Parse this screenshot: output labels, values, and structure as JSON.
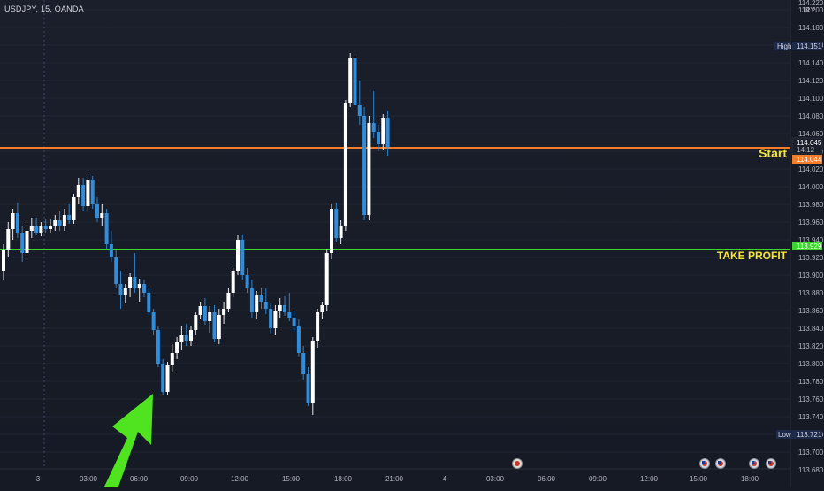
{
  "header": {
    "symbol": "USDJPY, 15, OANDA"
  },
  "price_axis": {
    "currency": "JPY",
    "top_partial": "114.220",
    "ticks": [
      "114.200",
      "114.180",
      "114.160",
      "114.140",
      "114.120",
      "114.100",
      "114.080",
      "114.060",
      "114.040",
      "114.020",
      "114.000",
      "113.980",
      "113.960",
      "113.940",
      "113.920",
      "113.900",
      "113.880",
      "113.860",
      "113.840",
      "113.820",
      "113.800",
      "113.780",
      "113.760",
      "113.740",
      "113.720",
      "113.700",
      "113.680"
    ],
    "high_label": "High",
    "high_value": "114.151",
    "current_price": "114.045",
    "countdown": "14:12",
    "start_price_tag": "114.044",
    "take_profit_price_tag": "113.929",
    "low_label": "Low",
    "low_value": "113.721"
  },
  "time_axis": {
    "labels": [
      "3",
      "03:00",
      "06:00",
      "09:00",
      "12:00",
      "15:00",
      "18:00",
      "21:00",
      "4",
      "03:00",
      "06:00",
      "09:00",
      "12:00",
      "15:00",
      "18:00"
    ]
  },
  "levels": {
    "start": {
      "label": "Start",
      "price": 114.044,
      "color": "#f57c2a"
    },
    "take_profit": {
      "label": "TAKE PROFIT",
      "price": 113.929,
      "color": "#3bd62c"
    }
  },
  "colors": {
    "up": "#ffffff",
    "down": "#2f8ddc",
    "arrow": "#4fe41f",
    "label": "#f5e73a",
    "bg": "#161a25"
  },
  "annotations": [
    {
      "type": "arrow",
      "direction": "up-right",
      "color": "#4fe41f"
    }
  ],
  "event_icons": [
    "event-icon",
    "us-flag-icon",
    "us-flag-icon",
    "us-flag-icon",
    "us-flag-icon"
  ],
  "chart_data": {
    "type": "candlestick",
    "ylim": [
      113.68,
      114.22
    ],
    "candles": [
      {
        "o": 113.905,
        "h": 113.935,
        "l": 113.895,
        "c": 113.928
      },
      {
        "o": 113.928,
        "h": 113.96,
        "l": 113.92,
        "c": 113.952
      },
      {
        "o": 113.952,
        "h": 113.975,
        "l": 113.94,
        "c": 113.97
      },
      {
        "o": 113.97,
        "h": 113.982,
        "l": 113.942,
        "c": 113.948
      },
      {
        "o": 113.948,
        "h": 113.955,
        "l": 113.915,
        "c": 113.925
      },
      {
        "o": 113.925,
        "h": 113.96,
        "l": 113.92,
        "c": 113.95
      },
      {
        "o": 113.95,
        "h": 113.965,
        "l": 113.942,
        "c": 113.955
      },
      {
        "o": 113.955,
        "h": 113.965,
        "l": 113.945,
        "c": 113.948
      },
      {
        "o": 113.948,
        "h": 113.96,
        "l": 113.944,
        "c": 113.956
      },
      {
        "o": 113.956,
        "h": 113.964,
        "l": 113.948,
        "c": 113.952
      },
      {
        "o": 113.952,
        "h": 113.964,
        "l": 113.948,
        "c": 113.955
      },
      {
        "o": 113.955,
        "h": 113.968,
        "l": 113.95,
        "c": 113.962
      },
      {
        "o": 113.962,
        "h": 113.972,
        "l": 113.95,
        "c": 113.955
      },
      {
        "o": 113.955,
        "h": 113.975,
        "l": 113.95,
        "c": 113.968
      },
      {
        "o": 113.968,
        "h": 113.98,
        "l": 113.958,
        "c": 113.962
      },
      {
        "o": 113.962,
        "h": 113.992,
        "l": 113.958,
        "c": 113.988
      },
      {
        "o": 113.988,
        "h": 114.01,
        "l": 113.98,
        "c": 114.002
      },
      {
        "o": 114.002,
        "h": 114.01,
        "l": 113.972,
        "c": 113.978
      },
      {
        "o": 113.978,
        "h": 114.012,
        "l": 113.972,
        "c": 114.008
      },
      {
        "o": 114.008,
        "h": 114.012,
        "l": 113.975,
        "c": 113.98
      },
      {
        "o": 113.98,
        "h": 113.988,
        "l": 113.96,
        "c": 113.965
      },
      {
        "o": 113.965,
        "h": 113.98,
        "l": 113.955,
        "c": 113.97
      },
      {
        "o": 113.97,
        "h": 113.975,
        "l": 113.93,
        "c": 113.935
      },
      {
        "o": 113.935,
        "h": 113.95,
        "l": 113.915,
        "c": 113.92
      },
      {
        "o": 113.92,
        "h": 113.928,
        "l": 113.885,
        "c": 113.89
      },
      {
        "o": 113.89,
        "h": 113.905,
        "l": 113.862,
        "c": 113.878
      },
      {
        "o": 113.878,
        "h": 113.89,
        "l": 113.868,
        "c": 113.885
      },
      {
        "o": 113.885,
        "h": 113.902,
        "l": 113.875,
        "c": 113.898
      },
      {
        "o": 113.898,
        "h": 113.925,
        "l": 113.88,
        "c": 113.885
      },
      {
        "o": 113.885,
        "h": 113.896,
        "l": 113.87,
        "c": 113.89
      },
      {
        "o": 113.89,
        "h": 113.895,
        "l": 113.875,
        "c": 113.88
      },
      {
        "o": 113.88,
        "h": 113.886,
        "l": 113.855,
        "c": 113.858
      },
      {
        "o": 113.858,
        "h": 113.862,
        "l": 113.832,
        "c": 113.838
      },
      {
        "o": 113.838,
        "h": 113.842,
        "l": 113.796,
        "c": 113.8
      },
      {
        "o": 113.8,
        "h": 113.805,
        "l": 113.765,
        "c": 113.768
      },
      {
        "o": 113.768,
        "h": 113.802,
        "l": 113.764,
        "c": 113.798
      },
      {
        "o": 113.798,
        "h": 113.822,
        "l": 113.79,
        "c": 113.812
      },
      {
        "o": 113.812,
        "h": 113.83,
        "l": 113.805,
        "c": 113.824
      },
      {
        "o": 113.824,
        "h": 113.842,
        "l": 113.815,
        "c": 113.832
      },
      {
        "o": 113.832,
        "h": 113.845,
        "l": 113.82,
        "c": 113.826
      },
      {
        "o": 113.826,
        "h": 113.842,
        "l": 113.82,
        "c": 113.838
      },
      {
        "o": 113.838,
        "h": 113.858,
        "l": 113.832,
        "c": 113.855
      },
      {
        "o": 113.855,
        "h": 113.87,
        "l": 113.85,
        "c": 113.865
      },
      {
        "o": 113.865,
        "h": 113.874,
        "l": 113.844,
        "c": 113.848
      },
      {
        "o": 113.848,
        "h": 113.865,
        "l": 113.835,
        "c": 113.858
      },
      {
        "o": 113.858,
        "h": 113.866,
        "l": 113.824,
        "c": 113.828
      },
      {
        "o": 113.828,
        "h": 113.862,
        "l": 113.822,
        "c": 113.855
      },
      {
        "o": 113.855,
        "h": 113.87,
        "l": 113.845,
        "c": 113.862
      },
      {
        "o": 113.862,
        "h": 113.885,
        "l": 113.858,
        "c": 113.88
      },
      {
        "o": 113.88,
        "h": 113.908,
        "l": 113.875,
        "c": 113.905
      },
      {
        "o": 113.905,
        "h": 113.945,
        "l": 113.9,
        "c": 113.94
      },
      {
        "o": 113.94,
        "h": 113.945,
        "l": 113.895,
        "c": 113.9
      },
      {
        "o": 113.9,
        "h": 113.908,
        "l": 113.88,
        "c": 113.885
      },
      {
        "o": 113.885,
        "h": 113.895,
        "l": 113.852,
        "c": 113.858
      },
      {
        "o": 113.858,
        "h": 113.882,
        "l": 113.85,
        "c": 113.878
      },
      {
        "o": 113.878,
        "h": 113.886,
        "l": 113.862,
        "c": 113.87
      },
      {
        "o": 113.87,
        "h": 113.885,
        "l": 113.856,
        "c": 113.862
      },
      {
        "o": 113.862,
        "h": 113.868,
        "l": 113.834,
        "c": 113.84
      },
      {
        "o": 113.84,
        "h": 113.866,
        "l": 113.832,
        "c": 113.86
      },
      {
        "o": 113.86,
        "h": 113.874,
        "l": 113.852,
        "c": 113.866
      },
      {
        "o": 113.866,
        "h": 113.876,
        "l": 113.854,
        "c": 113.858
      },
      {
        "o": 113.858,
        "h": 113.88,
        "l": 113.848,
        "c": 113.852
      },
      {
        "o": 113.852,
        "h": 113.86,
        "l": 113.836,
        "c": 113.842
      },
      {
        "o": 113.842,
        "h": 113.85,
        "l": 113.808,
        "c": 113.812
      },
      {
        "o": 113.812,
        "h": 113.82,
        "l": 113.782,
        "c": 113.788
      },
      {
        "o": 113.788,
        "h": 113.796,
        "l": 113.752,
        "c": 113.755
      },
      {
        "o": 113.755,
        "h": 113.83,
        "l": 113.742,
        "c": 113.825
      },
      {
        "o": 113.825,
        "h": 113.862,
        "l": 113.818,
        "c": 113.858
      },
      {
        "o": 113.858,
        "h": 113.87,
        "l": 113.85,
        "c": 113.866
      },
      {
        "o": 113.866,
        "h": 113.93,
        "l": 113.86,
        "c": 113.925
      },
      {
        "o": 113.925,
        "h": 113.98,
        "l": 113.918,
        "c": 113.975
      },
      {
        "o": 113.975,
        "h": 113.982,
        "l": 113.938,
        "c": 113.942
      },
      {
        "o": 113.942,
        "h": 113.962,
        "l": 113.935,
        "c": 113.955
      },
      {
        "o": 113.955,
        "h": 114.098,
        "l": 113.95,
        "c": 114.095
      },
      {
        "o": 114.095,
        "h": 114.151,
        "l": 114.09,
        "c": 114.145
      },
      {
        "o": 114.145,
        "h": 114.15,
        "l": 114.085,
        "c": 114.092
      },
      {
        "o": 114.092,
        "h": 114.12,
        "l": 114.07,
        "c": 114.08
      },
      {
        "o": 114.08,
        "h": 114.09,
        "l": 113.962,
        "c": 113.968
      },
      {
        "o": 113.968,
        "h": 114.08,
        "l": 113.962,
        "c": 114.072
      },
      {
        "o": 114.072,
        "h": 114.108,
        "l": 114.055,
        "c": 114.062
      },
      {
        "o": 114.062,
        "h": 114.07,
        "l": 114.04,
        "c": 114.048
      },
      {
        "o": 114.048,
        "h": 114.082,
        "l": 114.042,
        "c": 114.078
      },
      {
        "o": 114.078,
        "h": 114.086,
        "l": 114.035,
        "c": 114.045
      }
    ]
  }
}
